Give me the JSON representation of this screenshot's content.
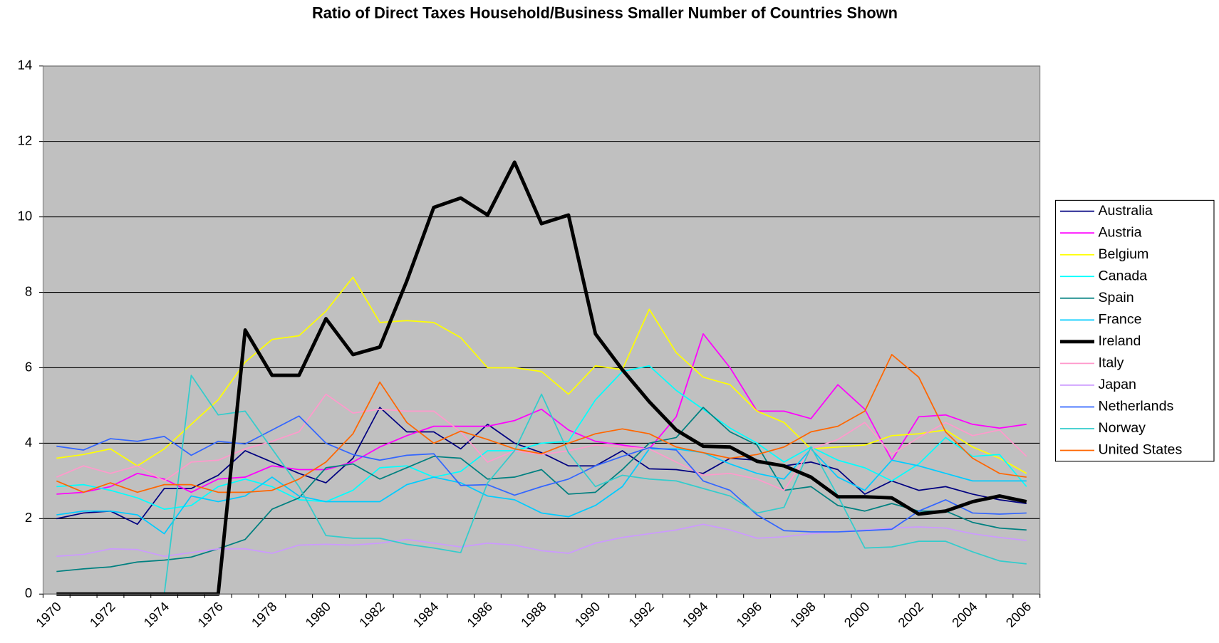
{
  "chart_data": {
    "type": "line",
    "title": "Ratio of Direct Taxes Household/Business Smaller Number of Countries Shown",
    "categories": [
      "1970",
      null,
      "1972",
      null,
      "1974",
      null,
      "1976",
      null,
      "1978",
      null,
      "1980",
      null,
      "1982",
      null,
      "1984",
      null,
      "1986",
      null,
      "1988",
      null,
      "1990",
      null,
      "1992",
      null,
      "1994",
      null,
      "1996",
      null,
      "1998",
      null,
      "2000",
      null,
      "2002",
      null,
      "2004",
      null,
      "2006"
    ],
    "ylim": [
      0,
      14
    ],
    "yticks": [
      0,
      2,
      4,
      6,
      8,
      10,
      12,
      14
    ],
    "grid": true,
    "legend": "right",
    "series": [
      {
        "name": "Australia",
        "color": "#000080",
        "values": [
          2.0,
          2.15,
          2.2,
          1.85,
          2.8,
          2.8,
          3.15,
          3.8,
          3.5,
          3.2,
          2.95,
          3.6,
          4.95,
          4.3,
          4.3,
          3.85,
          4.5,
          4.0,
          3.75,
          3.4,
          3.4,
          3.8,
          3.32,
          3.3,
          3.2,
          3.6,
          3.55,
          3.4,
          3.5,
          3.3,
          2.65,
          3.0,
          2.75,
          2.85,
          2.65,
          2.5,
          2.4
        ]
      },
      {
        "name": "Austria",
        "color": "#ff00ff",
        "values": [
          2.65,
          2.7,
          2.85,
          3.2,
          3.05,
          2.7,
          3.05,
          3.1,
          3.4,
          3.3,
          3.3,
          3.5,
          3.9,
          4.2,
          4.45,
          4.45,
          4.45,
          4.6,
          4.9,
          4.35,
          4.05,
          3.95,
          3.85,
          4.7,
          6.9,
          6.0,
          4.85,
          4.85,
          4.65,
          5.55,
          4.9,
          3.55,
          4.7,
          4.75,
          4.5,
          4.4,
          4.5
        ]
      },
      {
        "name": "Belgium",
        "color": "#ffff00",
        "values": [
          3.6,
          3.7,
          3.85,
          3.4,
          3.85,
          4.5,
          5.15,
          6.15,
          6.75,
          6.85,
          7.5,
          8.4,
          7.2,
          7.25,
          7.2,
          6.8,
          6.0,
          6.0,
          5.9,
          5.3,
          6.05,
          5.95,
          7.55,
          6.4,
          5.75,
          5.55,
          4.85,
          4.55,
          3.85,
          3.9,
          3.95,
          4.2,
          4.25,
          4.35,
          3.9,
          3.6,
          3.2
        ]
      },
      {
        "name": "Canada",
        "color": "#00ffff",
        "values": [
          2.85,
          2.9,
          2.75,
          2.55,
          2.25,
          2.35,
          2.85,
          3.05,
          2.85,
          2.5,
          2.45,
          2.75,
          3.35,
          3.4,
          3.1,
          3.25,
          3.8,
          3.8,
          4.0,
          4.05,
          5.15,
          5.9,
          6.05,
          5.4,
          4.9,
          4.4,
          4.0,
          3.5,
          3.9,
          3.55,
          3.35,
          3.0,
          3.45,
          4.15,
          3.65,
          3.7,
          2.85
        ]
      },
      {
        "name": "Spain",
        "color": "#008080",
        "values": [
          0.6,
          0.67,
          0.72,
          0.85,
          0.9,
          0.98,
          1.2,
          1.45,
          2.25,
          2.55,
          3.35,
          3.45,
          3.05,
          3.35,
          3.65,
          3.6,
          3.05,
          3.1,
          3.3,
          2.65,
          2.7,
          3.3,
          4.0,
          4.15,
          4.95,
          4.3,
          3.95,
          2.75,
          2.85,
          2.35,
          2.2,
          2.4,
          2.2,
          2.2,
          1.9,
          1.75,
          1.7
        ]
      },
      {
        "name": "France",
        "color": "#00ccff",
        "values": [
          2.1,
          2.2,
          2.2,
          2.1,
          1.6,
          2.6,
          2.45,
          2.6,
          3.1,
          2.6,
          2.45,
          2.45,
          2.45,
          2.9,
          3.1,
          2.95,
          2.6,
          2.5,
          2.15,
          2.05,
          2.35,
          2.85,
          3.85,
          3.85,
          3.75,
          3.45,
          3.2,
          3.05,
          3.85,
          3.1,
          2.75,
          3.55,
          3.4,
          3.2,
          3.0,
          3.0,
          3.0
        ]
      },
      {
        "name": "Ireland",
        "color": "#000000",
        "values": [
          0,
          0,
          0,
          0,
          0,
          0,
          0,
          7.0,
          5.8,
          5.8,
          7.3,
          6.35,
          6.55,
          8.3,
          10.25,
          10.5,
          10.05,
          11.45,
          9.82,
          10.05,
          6.9,
          5.95,
          5.1,
          4.35,
          3.92,
          3.9,
          3.52,
          3.4,
          3.1,
          2.58,
          2.58,
          2.55,
          2.12,
          2.2,
          2.45,
          2.6,
          2.45
        ]
      },
      {
        "name": "Italy",
        "color": "#ff99cc",
        "values": [
          3.1,
          3.4,
          3.2,
          3.4,
          3.0,
          3.5,
          3.55,
          3.85,
          4.05,
          4.3,
          5.3,
          4.8,
          4.9,
          4.85,
          4.85,
          4.3,
          3.5,
          3.8,
          3.7,
          3.8,
          3.95,
          3.9,
          3.85,
          3.5,
          3.15,
          3.2,
          3.05,
          2.75,
          3.85,
          4.1,
          4.55,
          3.7,
          4.15,
          4.55,
          4.2,
          4.35,
          3.65
        ]
      },
      {
        "name": "Japan",
        "color": "#cc99ff",
        "values": [
          1.0,
          1.05,
          1.2,
          1.18,
          1.0,
          1.1,
          1.2,
          1.2,
          1.08,
          1.3,
          1.32,
          1.3,
          1.35,
          1.45,
          1.35,
          1.25,
          1.35,
          1.3,
          1.15,
          1.08,
          1.35,
          1.5,
          1.6,
          1.7,
          1.85,
          1.7,
          1.48,
          1.52,
          1.6,
          1.65,
          1.7,
          1.75,
          1.78,
          1.75,
          1.6,
          1.5,
          1.42
        ]
      },
      {
        "name": "Netherlands",
        "color": "#3366ff",
        "values": [
          3.92,
          3.82,
          4.12,
          4.05,
          4.18,
          3.68,
          4.05,
          3.98,
          4.35,
          4.72,
          4.0,
          3.7,
          3.55,
          3.68,
          3.72,
          2.88,
          2.9,
          2.62,
          2.85,
          3.05,
          3.4,
          3.65,
          3.88,
          3.82,
          3.0,
          2.75,
          2.1,
          1.68,
          1.65,
          1.65,
          1.68,
          1.72,
          2.2,
          2.5,
          2.15,
          2.12,
          2.15
        ]
      },
      {
        "name": "Norway",
        "color": "#33cccc",
        "values": [
          0,
          0,
          0,
          0,
          0,
          5.8,
          4.75,
          4.85,
          3.85,
          2.85,
          1.55,
          1.48,
          1.48,
          1.32,
          1.22,
          1.1,
          2.95,
          3.8,
          5.3,
          3.75,
          2.85,
          3.15,
          3.05,
          3.0,
          2.8,
          2.6,
          2.15,
          2.3,
          3.9,
          2.6,
          1.22,
          1.25,
          1.4,
          1.4,
          1.12,
          0.88,
          0.8
        ]
      },
      {
        "name": "United States",
        "color": "#ff6600",
        "values": [
          3.0,
          2.7,
          2.95,
          2.7,
          2.9,
          2.9,
          2.7,
          2.7,
          2.75,
          3.05,
          3.5,
          4.25,
          5.62,
          4.55,
          4.0,
          4.32,
          4.1,
          3.85,
          3.72,
          4.0,
          4.25,
          4.38,
          4.25,
          3.9,
          3.75,
          3.6,
          3.7,
          3.9,
          4.3,
          4.45,
          4.85,
          6.35,
          5.75,
          4.3,
          3.6,
          3.2,
          3.1
        ]
      }
    ]
  }
}
